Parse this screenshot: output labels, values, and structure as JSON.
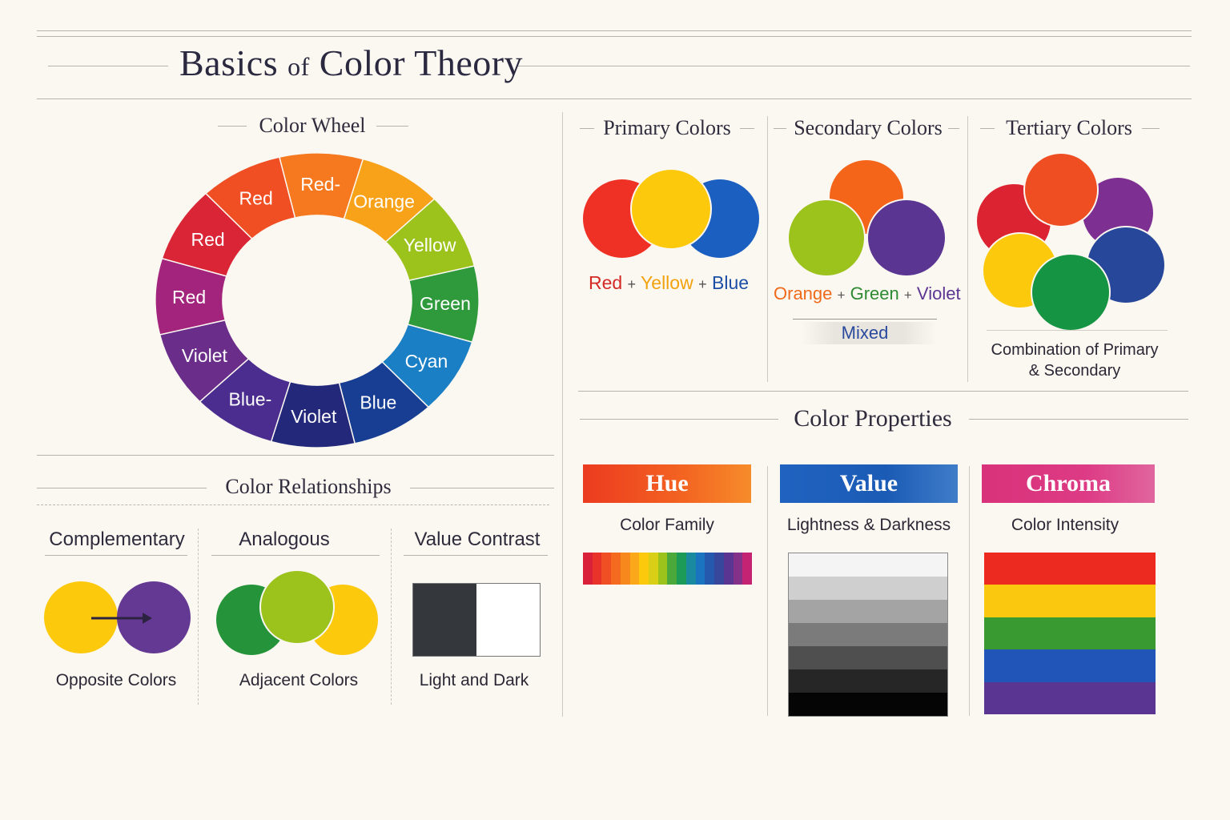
{
  "page": {
    "title_part1": "Basics",
    "title_part2": "of",
    "title_part3": "Color Theory"
  },
  "color_wheel": {
    "heading": "Color Wheel",
    "segments": [
      {
        "label": "Red-",
        "color": "#f6791f"
      },
      {
        "label": "Orange",
        "color": "#f8a21a"
      },
      {
        "label": "Yellow",
        "color": "#9cc21c"
      },
      {
        "label": "Green",
        "color": "#2e9a3c"
      },
      {
        "label": "Cyan",
        "color": "#1a7fc4"
      },
      {
        "label": "Blue",
        "color": "#173e92"
      },
      {
        "label": "Violet",
        "color": "#23287a"
      },
      {
        "label": "Blue-",
        "color": "#4a2d8e"
      },
      {
        "label": "Violet",
        "color": "#6b2d8a"
      },
      {
        "label": "Red",
        "color": "#a3247c"
      },
      {
        "label": "Red",
        "color": "#d92536"
      },
      {
        "label": "Red",
        "color": "#f04e23"
      }
    ]
  },
  "primary": {
    "heading": "Primary Colors",
    "colors": [
      "#ee3124",
      "#fcc90d",
      "#1b5fc1"
    ],
    "words": [
      {
        "text": "Red",
        "color": "#d32a26"
      },
      {
        "text": "+",
        "color": "#555555"
      },
      {
        "text": "Yellow",
        "color": "#f2a20c"
      },
      {
        "text": "+",
        "color": "#555555"
      },
      {
        "text": "Blue",
        "color": "#1d4ea6"
      }
    ]
  },
  "secondary": {
    "heading": "Secondary Colors",
    "colors": [
      "#f46419",
      "#9cc21c",
      "#5a3692"
    ],
    "words": [
      {
        "text": "Orange",
        "color": "#ef6a1b"
      },
      {
        "text": "+",
        "color": "#555555"
      },
      {
        "text": "Green",
        "color": "#2f8a32"
      },
      {
        "text": "+",
        "color": "#555555"
      },
      {
        "text": "Violet",
        "color": "#5d3592"
      }
    ],
    "mixed_label": "Mixed"
  },
  "tertiary": {
    "heading": "Tertiary Colors",
    "colors": [
      "#dc2332",
      "#ef4e23",
      "#7e3092",
      "#fcc90d",
      "#159543",
      "#27479a"
    ],
    "caption_line1": "Combination of Primary",
    "caption_line2": "& Secondary"
  },
  "relationships": {
    "heading": "Color Relationships",
    "items": [
      {
        "heading": "Complementary",
        "caption": "Opposite Colors"
      },
      {
        "heading": "Analogous",
        "caption": "Adjacent Colors"
      },
      {
        "heading": "Value Contrast",
        "caption": "Light and Dark"
      }
    ],
    "complementary_colors": [
      "#fcc90d",
      "#643993"
    ],
    "analogous_colors": [
      "#259339",
      "#9cc21c",
      "#fcc90d"
    ],
    "contrast_colors": [
      "#34373b",
      "#ffffff"
    ]
  },
  "properties": {
    "heading": "Color Properties",
    "items": [
      {
        "banner": "Hue",
        "caption": "Color Family"
      },
      {
        "banner": "Value",
        "caption": "Lightness & Darkness"
      },
      {
        "banner": "Chroma",
        "caption": "Color Intensity"
      }
    ],
    "hue_strip": [
      "#d9213a",
      "#e8322a",
      "#f04e23",
      "#f46a1f",
      "#f7881c",
      "#fba81a",
      "#fcc90d",
      "#d8cf16",
      "#9cc21c",
      "#4ba83a",
      "#1c9a58",
      "#1a8aa0",
      "#1a74c0",
      "#2459ad",
      "#37479b",
      "#5a3692",
      "#833189",
      "#c42272"
    ],
    "value_steps": [
      "#f4f4f4",
      "#cfcfcf",
      "#a4a4a4",
      "#7b7b7b",
      "#4f4f4f",
      "#262626",
      "#050505"
    ],
    "chroma_rows": [
      "#ec2a20",
      "#fac80e",
      "#3a9a32",
      "#2255b8",
      "#5a3692"
    ]
  }
}
